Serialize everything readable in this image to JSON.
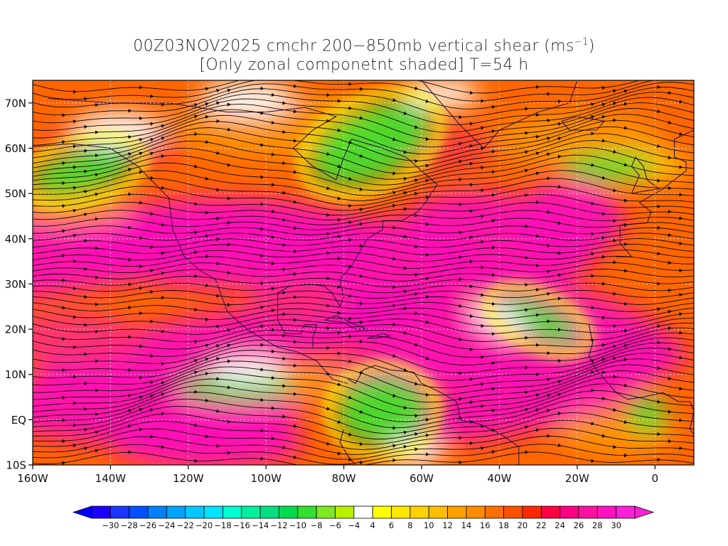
{
  "title": {
    "line1_prefix": "00Z03NOV2025 cmchr 200−850mb vertical shear (ms",
    "line1_superscript": "−1",
    "line1_suffix": ")",
    "line2": "[Only zonal componetnt shaded] T=54 h"
  },
  "map": {
    "lon_labels": [
      "160W",
      "140W",
      "120W",
      "100W",
      "80W",
      "60W",
      "40W",
      "20W",
      "0"
    ],
    "lat_labels": [
      "70N",
      "60N",
      "50N",
      "40N",
      "30N",
      "20N",
      "10N",
      "EQ",
      "10S"
    ],
    "lon_range": [
      -160,
      10
    ],
    "lat_range": [
      -10,
      75
    ],
    "gridlines": "dotted",
    "shaded_field": "zonal component of 200-850mb vertical shear",
    "vectors": "streamlines",
    "coastlines": true
  },
  "colorbar": {
    "placement": "bottom",
    "ticks": [
      "−30",
      "−28",
      "−26",
      "−24",
      "−22",
      "−20",
      "−18",
      "−16",
      "−14",
      "−12",
      "−10",
      "−8",
      "−6",
      "−4",
      "4",
      "6",
      "8",
      "10",
      "12",
      "14",
      "16",
      "18",
      "20",
      "22",
      "24",
      "26",
      "28",
      "30"
    ],
    "colors": [
      "#1a00ff",
      "#1a36ff",
      "#0050ff",
      "#0080ff",
      "#00a4ff",
      "#00c8ff",
      "#00e4ff",
      "#00ffd0",
      "#00f0a0",
      "#00e080",
      "#00dc50",
      "#30e030",
      "#80e820",
      "#b8f000",
      "#ffffff",
      "#ffff00",
      "#ffe600",
      "#ffd200",
      "#ffbe00",
      "#ffa000",
      "#ff8c00",
      "#ff6e00",
      "#ff5000",
      "#ff2800",
      "#ff0040",
      "#ff0080",
      "#ff10a0",
      "#ff10c0",
      "#ff20d8"
    ],
    "underflow_color": "#0000ff",
    "overflow_color": "#ff20d8"
  }
}
